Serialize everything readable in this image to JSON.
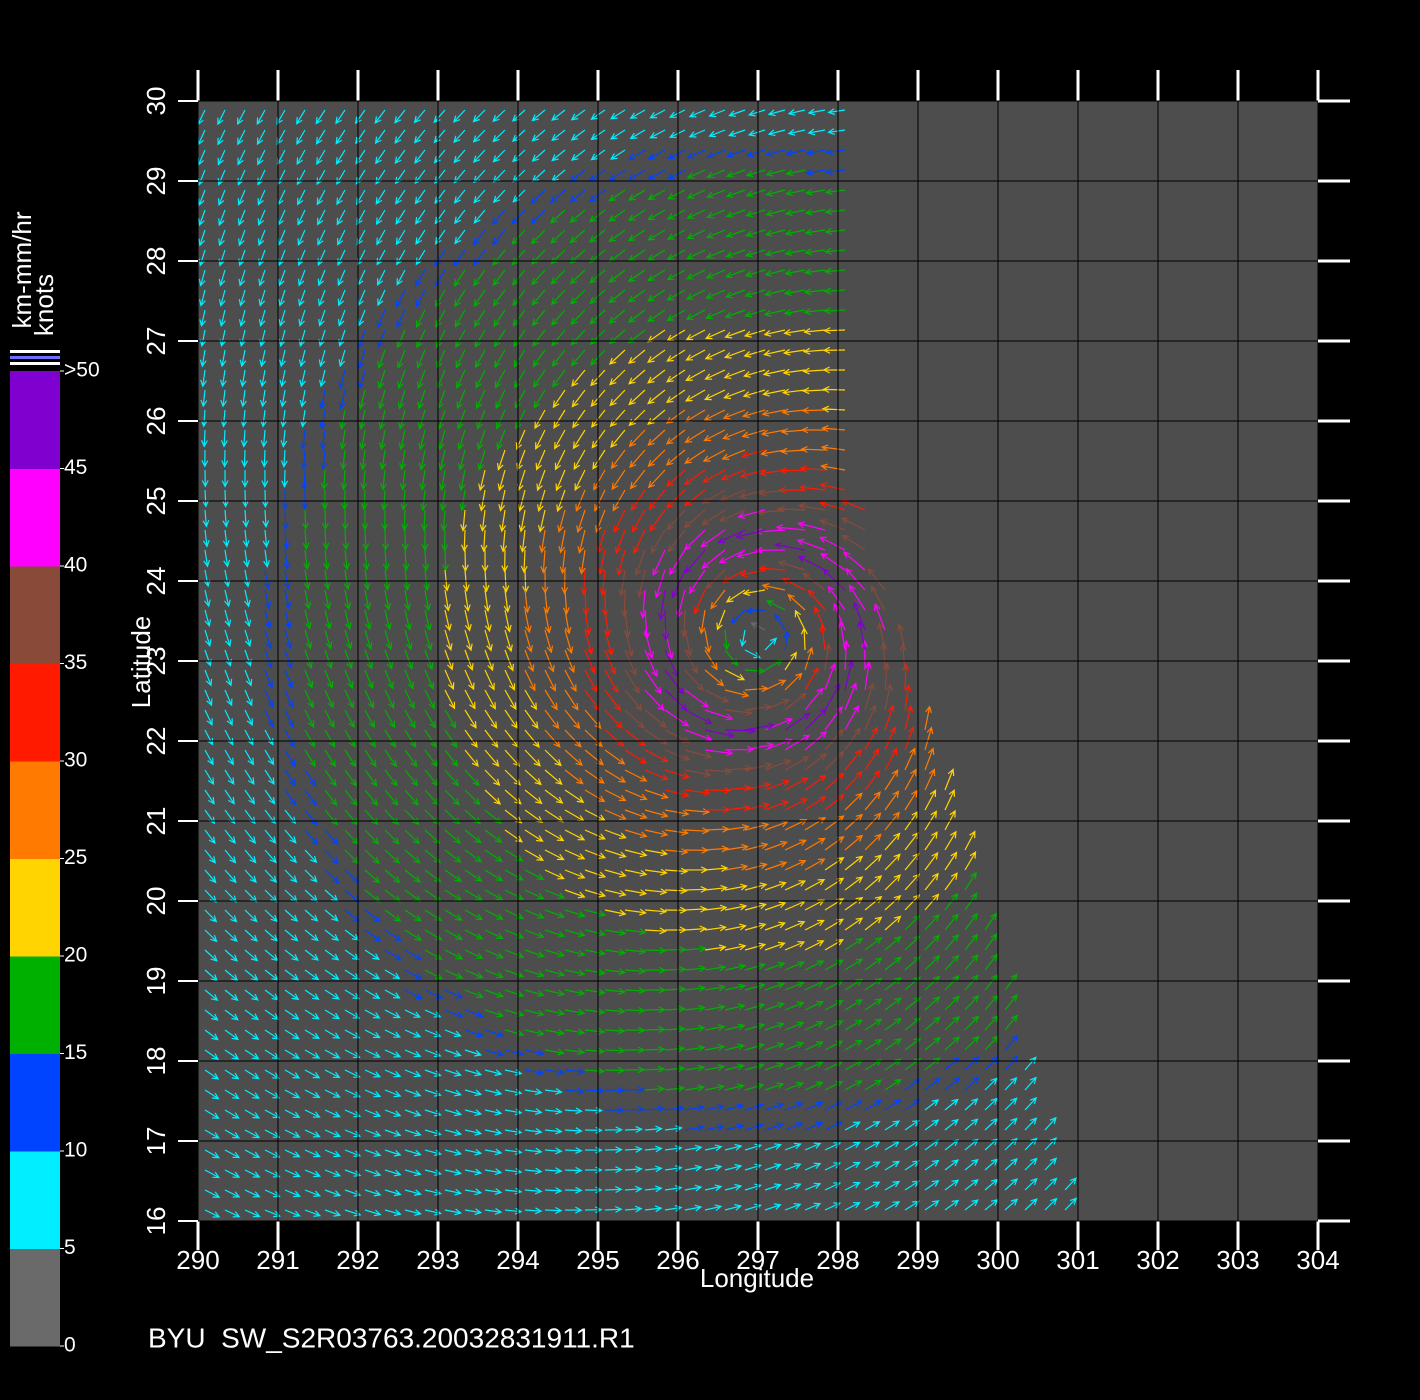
{
  "chart_data": {
    "type": "vector_map",
    "title": "BYU  SW_S2R03763.20032831911.R1",
    "x_label": "Longitude",
    "y_label": "Latitude",
    "xlim": [
      290,
      304
    ],
    "xticks": [
      290,
      291,
      292,
      293,
      294,
      295,
      296,
      297,
      298,
      299,
      300,
      301,
      302,
      303,
      304
    ],
    "ylim": [
      16,
      30
    ],
    "yticks": [
      16,
      17,
      18,
      19,
      20,
      21,
      22,
      23,
      24,
      25,
      26,
      27,
      28,
      29,
      30
    ],
    "grid": true,
    "colorbar": {
      "label_top": "km-mm/hr",
      "label_bottom": "knots",
      "lim": [
        0,
        50
      ],
      "ticks": [
        0,
        5,
        10,
        15,
        20,
        25,
        30,
        35,
        40,
        45,
        {
          "value": 50,
          "label": ">50"
        }
      ],
      "colors": [
        "#6a6a6a",
        "#00eeff",
        "#0044ff",
        "#00b000",
        "#ffd400",
        "#ff7a00",
        "#ff1a00",
        "#8a4a3a",
        "#ff00ff",
        "#8000d0"
      ]
    }
  }
}
